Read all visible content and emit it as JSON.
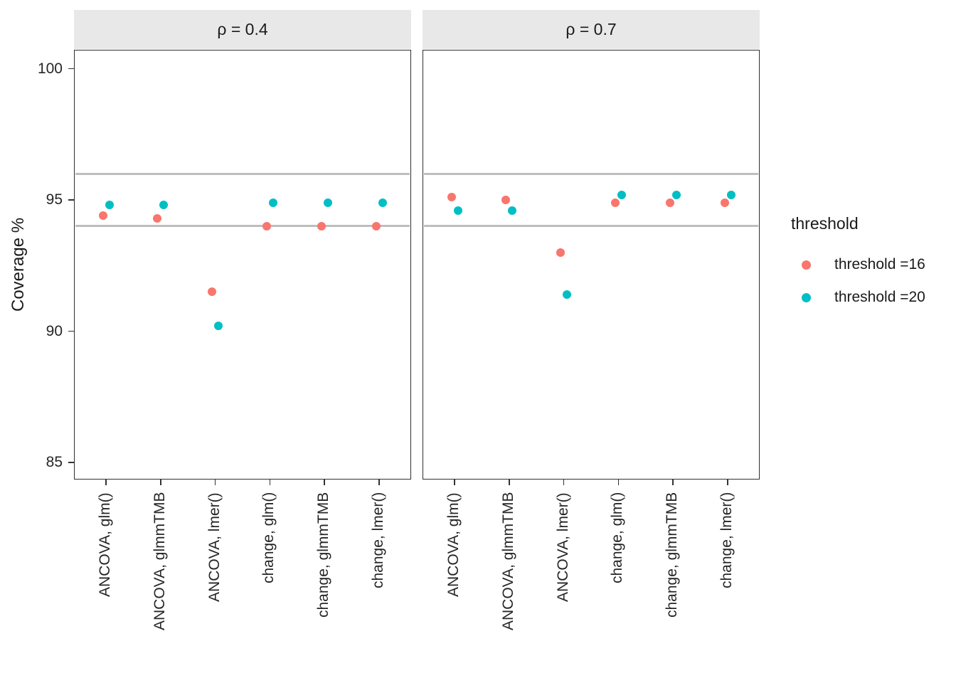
{
  "chart_data": {
    "type": "scatter",
    "ylabel": "Coverage %",
    "y_ticks": [
      100,
      95,
      90,
      85
    ],
    "ylim": [
      84.35,
      100.72
    ],
    "reference_lines": [
      96,
      94
    ],
    "categories": [
      "ANCOVA, glm()",
      "ANCOVA, glmmTMB",
      "ANCOVA, lmer()",
      "change, glm()",
      "change, glmmTMB",
      "change, lmer()"
    ],
    "facets": [
      {
        "label": "ρ = 0.4",
        "series": [
          {
            "name": "threshold =16",
            "values": [
              94.4,
              94.3,
              91.5,
              94.0,
              94.0,
              94.0
            ]
          },
          {
            "name": "threshold =20",
            "values": [
              94.8,
              94.8,
              90.2,
              94.9,
              94.9,
              94.9
            ]
          }
        ]
      },
      {
        "label": "ρ = 0.7",
        "series": [
          {
            "name": "threshold =16",
            "values": [
              95.1,
              95.0,
              93.0,
              94.9,
              94.9,
              94.9
            ]
          },
          {
            "name": "threshold =20",
            "values": [
              94.6,
              94.6,
              91.4,
              95.2,
              95.2,
              95.2
            ]
          }
        ]
      }
    ],
    "legend": {
      "title": "threshold",
      "items": [
        {
          "label": "threshold =16",
          "color": "#F8766D"
        },
        {
          "label": "threshold =20",
          "color": "#00BFC4"
        }
      ]
    },
    "colors": {
      "strip_background": "#E8E8E8",
      "panel_border": "#2F2F2F",
      "reference_line": "#BEBEBE",
      "background": "#FFFFFF"
    },
    "grid": "off",
    "legend_position": "right"
  }
}
